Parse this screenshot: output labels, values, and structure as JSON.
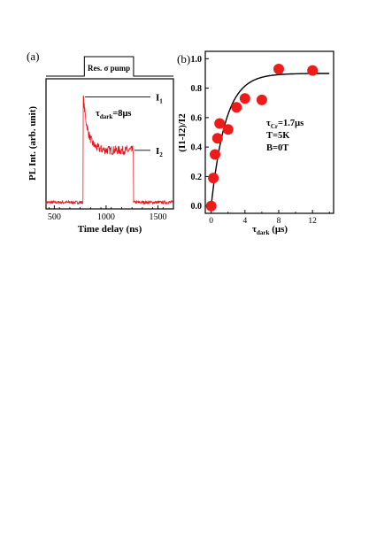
{
  "colors": {
    "trace": "#e8141b",
    "marker": "#ee1b1b",
    "axis": "#000000",
    "fit": "#000000"
  },
  "chart_data": [
    {
      "panel": "(a)",
      "type": "line",
      "xlabel": "Time delay (ns)",
      "ylabel": "PL Int. (arb. unit)",
      "xlim": [
        420,
        1650
      ],
      "ylim": [
        0,
        1.0
      ],
      "xticks": [
        500,
        1000,
        1500
      ],
      "xtick_labels": [
        "500",
        "1000",
        "1500"
      ],
      "grid": false,
      "pump_label": "Res. σ pump",
      "pump_window": [
        790,
        1265
      ],
      "annotation_tau": "τ",
      "annotation_sub": "dark",
      "annotation_val": "=8μs",
      "label_i1": "I",
      "label_i1_sub": "1",
      "label_i2": "I",
      "label_i2_sub": "2",
      "trace": {
        "baseline": 0.05,
        "rise_x": 780,
        "peak": 0.86,
        "plateau": 0.45,
        "decay_ns": 45,
        "fall_x": 1265
      }
    },
    {
      "panel": "(b)",
      "type": "scatter",
      "xlabel": "τ",
      "xlabel_sub": "dark",
      "xlabel_unit": " (μs)",
      "ylabel": "(I1-I2)/I2",
      "xlim": [
        -0.7,
        14.5
      ],
      "ylim": [
        -0.05,
        1.05
      ],
      "xticks": [
        0,
        4,
        8,
        12
      ],
      "xtick_labels": [
        "0",
        "4",
        "8",
        "12"
      ],
      "yticks": [
        0.0,
        0.2,
        0.4,
        0.6,
        0.8,
        1.0
      ],
      "ytick_labels": [
        "0.0",
        "0.2",
        "0.4",
        "0.6",
        "0.8",
        "1.0"
      ],
      "grid": false,
      "points": {
        "x": [
          0.0,
          0.25,
          0.45,
          0.75,
          1.0,
          2.0,
          3.0,
          4.0,
          6.0,
          8.0,
          12.0
        ],
        "y": [
          0.0,
          0.19,
          0.35,
          0.46,
          0.56,
          0.52,
          0.67,
          0.73,
          0.72,
          0.93,
          0.92
        ]
      },
      "fit": {
        "saturation": 0.9,
        "tau": 1.7
      },
      "params": [
        {
          "main": "τ",
          "sub": "Cr",
          "rest": "=1.7μs"
        },
        {
          "main": "T=5K",
          "sub": "",
          "rest": ""
        },
        {
          "main": "B=0T",
          "sub": "",
          "rest": ""
        }
      ]
    }
  ]
}
